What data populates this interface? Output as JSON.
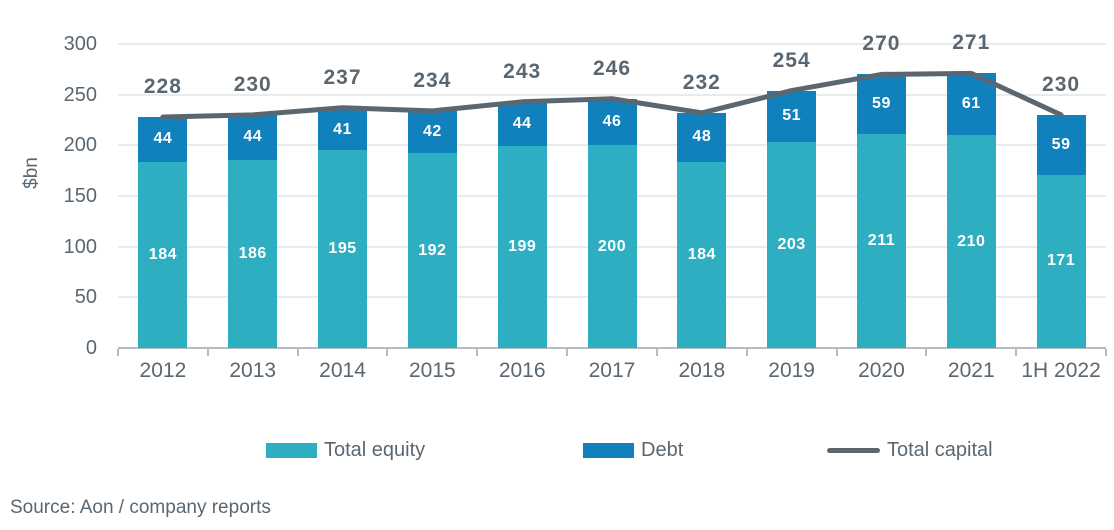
{
  "chart_data": {
    "type": "bar",
    "subtype": "stacked-bar-with-line-overlay",
    "categories": [
      "2012",
      "2013",
      "2014",
      "2015",
      "2016",
      "2017",
      "2018",
      "2019",
      "2020",
      "2021",
      "1H 2022"
    ],
    "series": [
      {
        "name": "Total equity",
        "type": "bar",
        "color": "#2EAEC1",
        "values": [
          184,
          186,
          195,
          192,
          199,
          200,
          184,
          203,
          211,
          210,
          171
        ]
      },
      {
        "name": "Debt",
        "type": "bar",
        "color": "#1181BE",
        "values": [
          44,
          44,
          41,
          42,
          44,
          46,
          48,
          51,
          59,
          61,
          59
        ]
      },
      {
        "name": "Total capital",
        "type": "line",
        "color": "#5A6771",
        "values": [
          228,
          230,
          237,
          234,
          243,
          246,
          232,
          254,
          270,
          271,
          230
        ]
      }
    ],
    "title": "",
    "xlabel": "",
    "ylabel": "$bn",
    "ylim": [
      0,
      300
    ],
    "yticks": [
      0,
      50,
      100,
      150,
      200,
      250,
      300
    ],
    "grid": "horizontal",
    "legend_position": "bottom",
    "value_labels": "inside-segments-and-total-above"
  },
  "colors": {
    "equity_bar": "#2EAEC1",
    "debt_bar": "#1181BE",
    "total_capital_line": "#5A6771",
    "axis_text": "#5A6771",
    "gridline": "#E7EBEC",
    "axis_line": "#B6BDC2",
    "segment_value_text": "#FFFFFF"
  },
  "source_text": "Source: Aon / company reports"
}
